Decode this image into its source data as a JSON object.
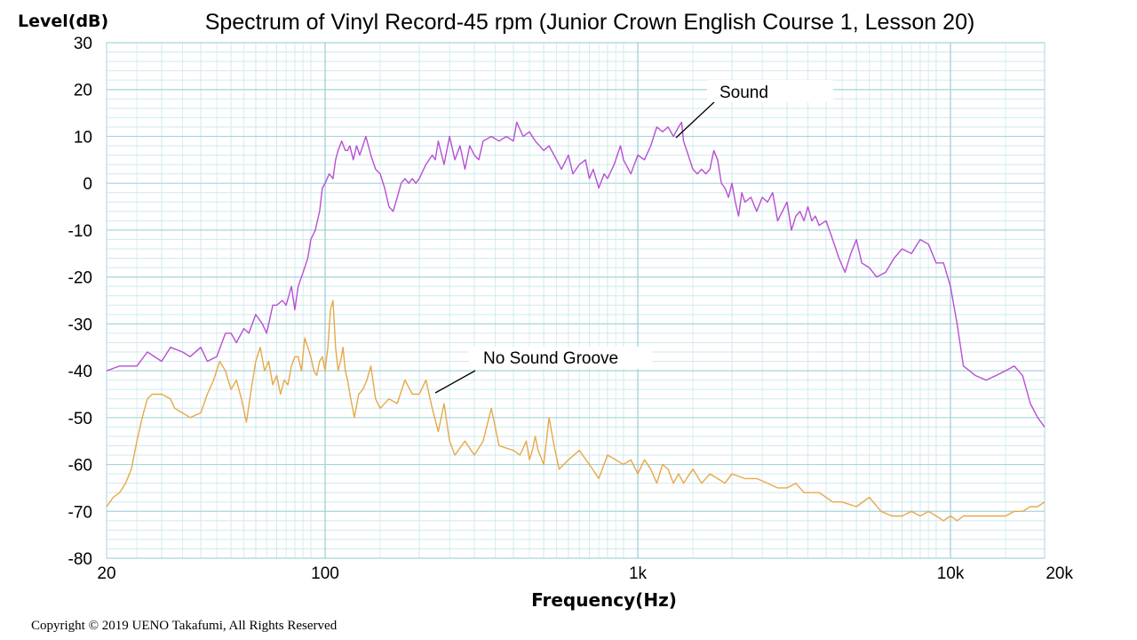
{
  "chart_data": {
    "type": "line",
    "title": "Spectrum of Vinyl Record-45 rpm (Junior Crown English Course 1, Lesson 20)",
    "xlabel": "Frequency(Hz)",
    "ylabel": "Level(dB)",
    "x_scale": "log",
    "xlim": [
      20,
      20000
    ],
    "ylim": [
      -80,
      30
    ],
    "x_ticks": [
      {
        "value": 20,
        "label": "20"
      },
      {
        "value": 100,
        "label": "100"
      },
      {
        "value": 1000,
        "label": "1k"
      },
      {
        "value": 10000,
        "label": "10k"
      },
      {
        "value": 20000,
        "label": "20k"
      }
    ],
    "y_ticks": [
      30,
      20,
      10,
      0,
      -10,
      -20,
      -30,
      -40,
      -50,
      -60,
      -70,
      -80
    ],
    "y_tick_labels": [
      "30",
      "20",
      "10",
      "0",
      "-10",
      "-20",
      "-30",
      "-40",
      "-50",
      "-60",
      "-70",
      "-80"
    ],
    "grid": true,
    "colors": {
      "grid_major": "#a8d4dc",
      "grid_minor": "#cfe9ee",
      "sound": "#b84fd4",
      "no_sound_groove": "#e8a848"
    },
    "series": [
      {
        "name": "Sound",
        "color": "#b84fd4",
        "points": [
          [
            20,
            -40
          ],
          [
            22,
            -39
          ],
          [
            25,
            -39
          ],
          [
            27,
            -36
          ],
          [
            30,
            -38
          ],
          [
            32,
            -35
          ],
          [
            35,
            -36
          ],
          [
            37,
            -37
          ],
          [
            40,
            -35
          ],
          [
            42,
            -38
          ],
          [
            45,
            -37
          ],
          [
            48,
            -32
          ],
          [
            50,
            -32
          ],
          [
            52,
            -34
          ],
          [
            55,
            -31
          ],
          [
            57,
            -32
          ],
          [
            60,
            -28
          ],
          [
            63,
            -30
          ],
          [
            65,
            -32
          ],
          [
            68,
            -26
          ],
          [
            70,
            -26
          ],
          [
            73,
            -25
          ],
          [
            75,
            -26
          ],
          [
            78,
            -22
          ],
          [
            80,
            -27
          ],
          [
            82,
            -22
          ],
          [
            85,
            -19
          ],
          [
            88,
            -16
          ],
          [
            90,
            -12
          ],
          [
            93,
            -10
          ],
          [
            96,
            -6
          ],
          [
            98,
            -1
          ],
          [
            100,
            0
          ],
          [
            103,
            2
          ],
          [
            106,
            1
          ],
          [
            108,
            5
          ],
          [
            110,
            7
          ],
          [
            113,
            9
          ],
          [
            116,
            7
          ],
          [
            118,
            7
          ],
          [
            120,
            8
          ],
          [
            123,
            5
          ],
          [
            126,
            8
          ],
          [
            129,
            6
          ],
          [
            132,
            8
          ],
          [
            135,
            10
          ],
          [
            140,
            6
          ],
          [
            145,
            3
          ],
          [
            150,
            2
          ],
          [
            155,
            -1
          ],
          [
            160,
            -5
          ],
          [
            165,
            -6
          ],
          [
            170,
            -3
          ],
          [
            175,
            0
          ],
          [
            180,
            1
          ],
          [
            185,
            0
          ],
          [
            190,
            1
          ],
          [
            195,
            0
          ],
          [
            200,
            1
          ],
          [
            210,
            4
          ],
          [
            220,
            6
          ],
          [
            225,
            5
          ],
          [
            230,
            9
          ],
          [
            240,
            4
          ],
          [
            250,
            10
          ],
          [
            260,
            5
          ],
          [
            270,
            8
          ],
          [
            280,
            3
          ],
          [
            290,
            8
          ],
          [
            300,
            6
          ],
          [
            310,
            5
          ],
          [
            320,
            9
          ],
          [
            340,
            10
          ],
          [
            360,
            9
          ],
          [
            380,
            10
          ],
          [
            400,
            9
          ],
          [
            410,
            13
          ],
          [
            430,
            10
          ],
          [
            450,
            11
          ],
          [
            470,
            9
          ],
          [
            500,
            7
          ],
          [
            520,
            8
          ],
          [
            550,
            5
          ],
          [
            570,
            3
          ],
          [
            600,
            6
          ],
          [
            620,
            2
          ],
          [
            650,
            4
          ],
          [
            680,
            5
          ],
          [
            700,
            1
          ],
          [
            720,
            3
          ],
          [
            750,
            -1
          ],
          [
            780,
            2
          ],
          [
            800,
            1
          ],
          [
            840,
            4
          ],
          [
            880,
            8
          ],
          [
            900,
            5
          ],
          [
            950,
            2
          ],
          [
            1000,
            6
          ],
          [
            1050,
            5
          ],
          [
            1100,
            8
          ],
          [
            1150,
            12
          ],
          [
            1200,
            11
          ],
          [
            1250,
            12
          ],
          [
            1300,
            10
          ],
          [
            1350,
            12
          ],
          [
            1380,
            13
          ],
          [
            1400,
            9
          ],
          [
            1450,
            6
          ],
          [
            1500,
            3
          ],
          [
            1550,
            2
          ],
          [
            1600,
            3
          ],
          [
            1650,
            2
          ],
          [
            1700,
            3
          ],
          [
            1750,
            7
          ],
          [
            1800,
            5
          ],
          [
            1850,
            0
          ],
          [
            1900,
            -1
          ],
          [
            1950,
            -3
          ],
          [
            2000,
            0
          ],
          [
            2050,
            -4
          ],
          [
            2100,
            -7
          ],
          [
            2150,
            -2
          ],
          [
            2200,
            -4
          ],
          [
            2300,
            -3
          ],
          [
            2400,
            -6
          ],
          [
            2500,
            -3
          ],
          [
            2600,
            -4
          ],
          [
            2700,
            -2
          ],
          [
            2800,
            -8
          ],
          [
            2900,
            -6
          ],
          [
            3000,
            -4
          ],
          [
            3100,
            -10
          ],
          [
            3200,
            -7
          ],
          [
            3300,
            -6
          ],
          [
            3400,
            -8
          ],
          [
            3500,
            -5
          ],
          [
            3600,
            -8
          ],
          [
            3700,
            -7
          ],
          [
            3800,
            -9
          ],
          [
            4000,
            -8
          ],
          [
            4200,
            -12
          ],
          [
            4400,
            -16
          ],
          [
            4600,
            -19
          ],
          [
            4800,
            -15
          ],
          [
            5000,
            -12
          ],
          [
            5200,
            -17
          ],
          [
            5500,
            -18
          ],
          [
            5800,
            -20
          ],
          [
            6200,
            -19
          ],
          [
            6600,
            -16
          ],
          [
            7000,
            -14
          ],
          [
            7500,
            -15
          ],
          [
            8000,
            -12
          ],
          [
            8500,
            -13
          ],
          [
            9000,
            -17
          ],
          [
            9500,
            -17
          ],
          [
            10000,
            -22
          ],
          [
            10500,
            -30
          ],
          [
            11000,
            -39
          ],
          [
            11500,
            -40
          ],
          [
            12000,
            -41
          ],
          [
            13000,
            -42
          ],
          [
            14000,
            -41
          ],
          [
            15000,
            -40
          ],
          [
            16000,
            -39
          ],
          [
            17000,
            -41
          ],
          [
            18000,
            -47
          ],
          [
            19000,
            -50
          ],
          [
            20000,
            -52
          ]
        ]
      },
      {
        "name": "No Sound Groove",
        "color": "#e8a848",
        "points": [
          [
            20,
            -69
          ],
          [
            21,
            -67
          ],
          [
            22,
            -66
          ],
          [
            23,
            -64
          ],
          [
            24,
            -61
          ],
          [
            25,
            -55
          ],
          [
            26,
            -50
          ],
          [
            27,
            -46
          ],
          [
            28,
            -45
          ],
          [
            30,
            -45
          ],
          [
            32,
            -46
          ],
          [
            33,
            -48
          ],
          [
            35,
            -49
          ],
          [
            37,
            -50
          ],
          [
            40,
            -49
          ],
          [
            42,
            -45
          ],
          [
            44,
            -42
          ],
          [
            46,
            -38
          ],
          [
            48,
            -40
          ],
          [
            50,
            -44
          ],
          [
            52,
            -42
          ],
          [
            54,
            -46
          ],
          [
            56,
            -51
          ],
          [
            58,
            -44
          ],
          [
            60,
            -38
          ],
          [
            62,
            -35
          ],
          [
            64,
            -40
          ],
          [
            66,
            -38
          ],
          [
            68,
            -43
          ],
          [
            70,
            -41
          ],
          [
            72,
            -45
          ],
          [
            74,
            -42
          ],
          [
            76,
            -43
          ],
          [
            78,
            -39
          ],
          [
            80,
            -37
          ],
          [
            82,
            -37
          ],
          [
            84,
            -40
          ],
          [
            86,
            -33
          ],
          [
            88,
            -35
          ],
          [
            90,
            -37
          ],
          [
            92,
            -40
          ],
          [
            94,
            -41
          ],
          [
            96,
            -38
          ],
          [
            98,
            -37
          ],
          [
            100,
            -40
          ],
          [
            102,
            -35
          ],
          [
            104,
            -27
          ],
          [
            106,
            -25
          ],
          [
            108,
            -35
          ],
          [
            110,
            -40
          ],
          [
            112,
            -38
          ],
          [
            114,
            -35
          ],
          [
            116,
            -40
          ],
          [
            118,
            -42
          ],
          [
            120,
            -45
          ],
          [
            124,
            -50
          ],
          [
            128,
            -45
          ],
          [
            132,
            -44
          ],
          [
            136,
            -42
          ],
          [
            140,
            -39
          ],
          [
            145,
            -46
          ],
          [
            150,
            -48
          ],
          [
            160,
            -46
          ],
          [
            170,
            -47
          ],
          [
            180,
            -42
          ],
          [
            190,
            -45
          ],
          [
            200,
            -45
          ],
          [
            210,
            -42
          ],
          [
            220,
            -48
          ],
          [
            230,
            -53
          ],
          [
            240,
            -47
          ],
          [
            250,
            -55
          ],
          [
            260,
            -58
          ],
          [
            280,
            -55
          ],
          [
            300,
            -58
          ],
          [
            320,
            -55
          ],
          [
            340,
            -48
          ],
          [
            360,
            -56
          ],
          [
            400,
            -57
          ],
          [
            420,
            -58
          ],
          [
            440,
            -55
          ],
          [
            450,
            -59
          ],
          [
            460,
            -57
          ],
          [
            470,
            -54
          ],
          [
            480,
            -57
          ],
          [
            500,
            -60
          ],
          [
            520,
            -50
          ],
          [
            540,
            -56
          ],
          [
            560,
            -61
          ],
          [
            600,
            -59
          ],
          [
            650,
            -57
          ],
          [
            700,
            -60
          ],
          [
            750,
            -63
          ],
          [
            800,
            -58
          ],
          [
            850,
            -59
          ],
          [
            900,
            -60
          ],
          [
            950,
            -59
          ],
          [
            1000,
            -62
          ],
          [
            1050,
            -59
          ],
          [
            1100,
            -61
          ],
          [
            1150,
            -64
          ],
          [
            1200,
            -60
          ],
          [
            1250,
            -61
          ],
          [
            1300,
            -64
          ],
          [
            1350,
            -62
          ],
          [
            1400,
            -64
          ],
          [
            1500,
            -61
          ],
          [
            1600,
            -64
          ],
          [
            1700,
            -62
          ],
          [
            1800,
            -63
          ],
          [
            1900,
            -64
          ],
          [
            2000,
            -62
          ],
          [
            2200,
            -63
          ],
          [
            2400,
            -63
          ],
          [
            2600,
            -64
          ],
          [
            2800,
            -65
          ],
          [
            3000,
            -65
          ],
          [
            3200,
            -64
          ],
          [
            3400,
            -66
          ],
          [
            3600,
            -66
          ],
          [
            3800,
            -66
          ],
          [
            4000,
            -67
          ],
          [
            4200,
            -68
          ],
          [
            4500,
            -68
          ],
          [
            5000,
            -69
          ],
          [
            5500,
            -67
          ],
          [
            6000,
            -70
          ],
          [
            6500,
            -71
          ],
          [
            7000,
            -71
          ],
          [
            7500,
            -70
          ],
          [
            8000,
            -71
          ],
          [
            8500,
            -70
          ],
          [
            9000,
            -71
          ],
          [
            9500,
            -72
          ],
          [
            10000,
            -71
          ],
          [
            10500,
            -72
          ],
          [
            11000,
            -71
          ],
          [
            12000,
            -71
          ],
          [
            13000,
            -71
          ],
          [
            14000,
            -71
          ],
          [
            15000,
            -71
          ],
          [
            16000,
            -70
          ],
          [
            17000,
            -70
          ],
          [
            18000,
            -69
          ],
          [
            19000,
            -69
          ],
          [
            20000,
            -68
          ]
        ]
      }
    ],
    "annotations": [
      {
        "text": "Sound",
        "series": "Sound"
      },
      {
        "text": "No Sound Groove",
        "series": "No Sound Groove"
      }
    ]
  },
  "copyright": "Copyright © 2019 UENO Takafumi, All Rights Reserved"
}
